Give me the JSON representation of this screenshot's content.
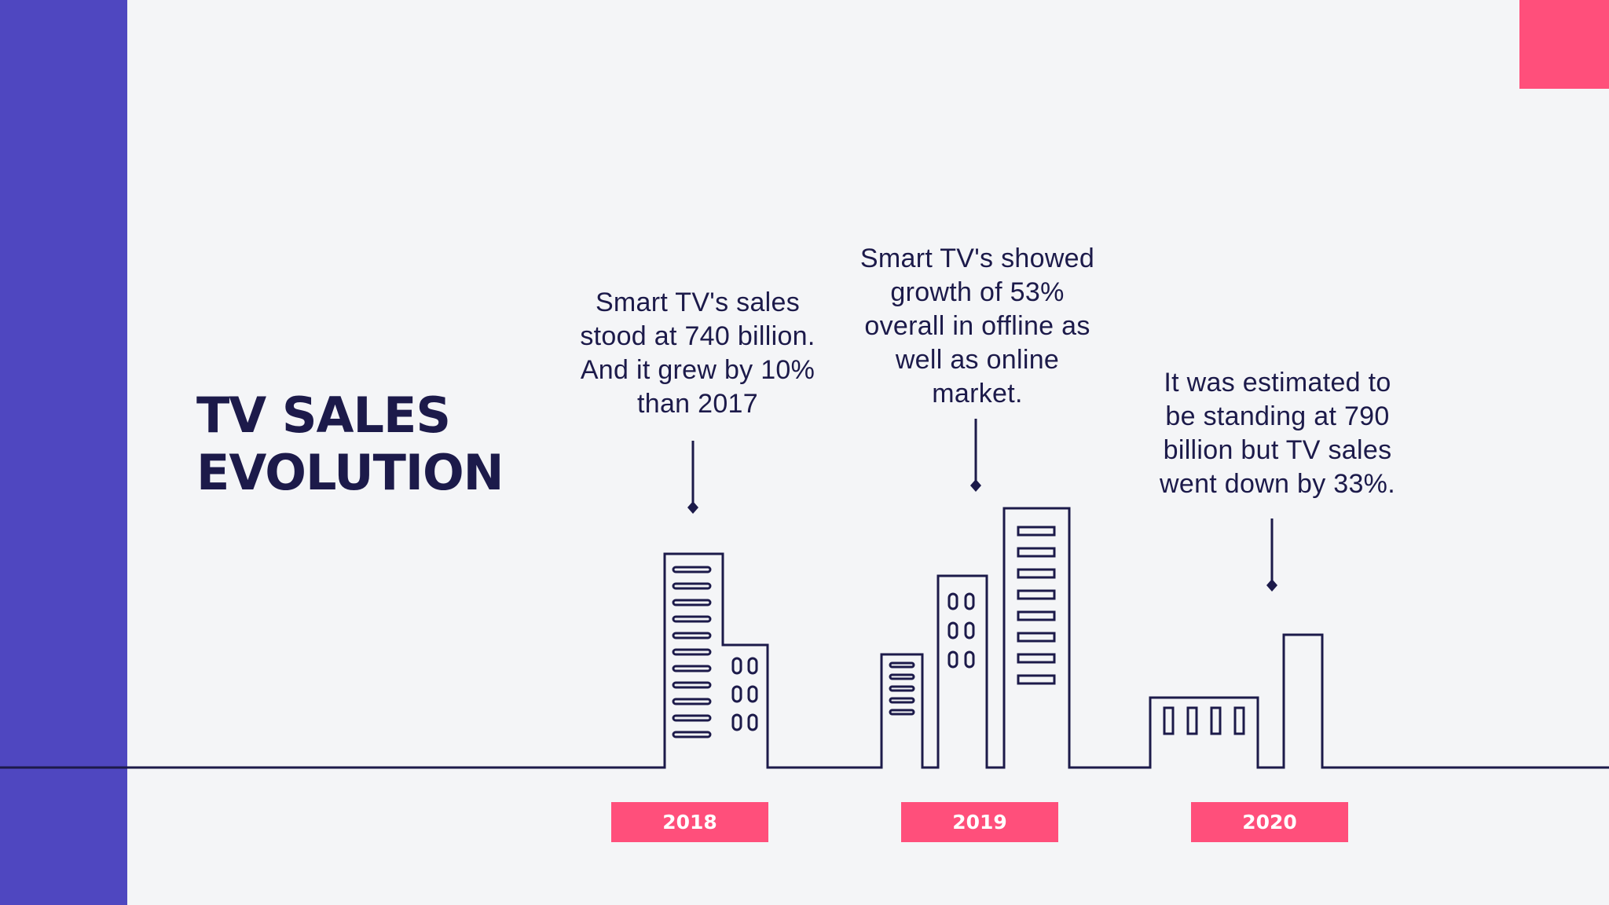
{
  "slide": {
    "title_line1": "TV SALES",
    "title_line2": "EVOLUTION",
    "colors": {
      "sidebar": "#4f47c0",
      "accent": "#ff4f7b",
      "ink": "#1c1a4a",
      "background": "#f4f5f7"
    }
  },
  "timeline": [
    {
      "year": "2018",
      "text": "Smart TV's sales\nstood at 740 billion.\nAnd it grew by 10%\nthan 2017"
    },
    {
      "year": "2019",
      "text": "Smart TV's showed\ngrowth of 53%\noverall in offline as\nwell as online\nmarket."
    },
    {
      "year": "2020",
      "text": "It was estimated to\nbe standing at 790\nbillion but TV sales\nwent down by 33%."
    }
  ]
}
